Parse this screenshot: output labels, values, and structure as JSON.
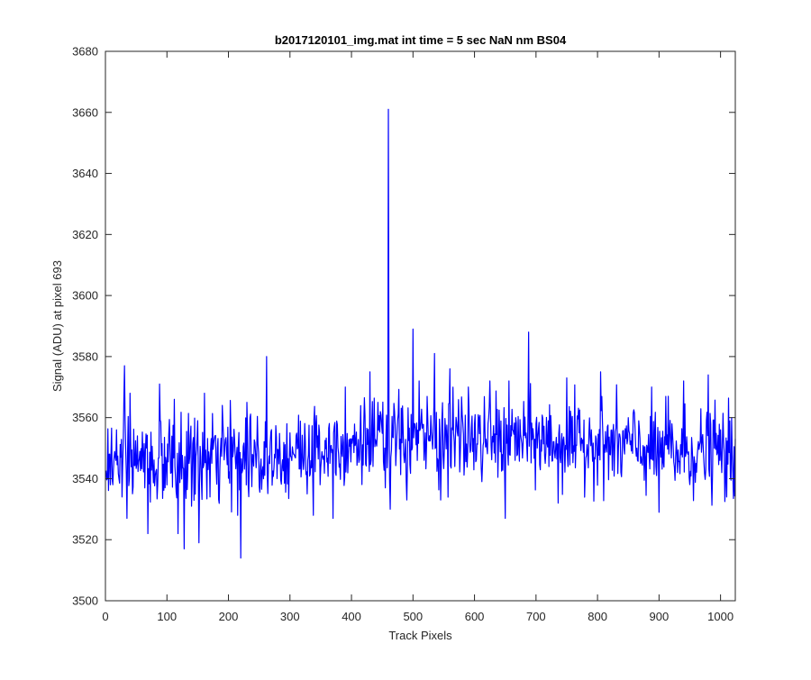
{
  "chart_data": {
    "type": "line",
    "title": "b2017120101_img.mat int time = 5 sec  NaN nm BS04",
    "xlabel": "Track Pixels",
    "ylabel": "Signal (ADU) at pixel 693",
    "xlim": [
      0,
      1024
    ],
    "ylim": [
      3500,
      3680
    ],
    "xticks": [
      0,
      100,
      200,
      300,
      400,
      500,
      600,
      700,
      800,
      900,
      1000
    ],
    "yticks": [
      3500,
      3520,
      3540,
      3560,
      3580,
      3600,
      3620,
      3640,
      3660,
      3680
    ],
    "grid": false,
    "legend": "none",
    "series_color": "#0000ff",
    "series": [
      {
        "x_start": 1,
        "x_step": 1,
        "n_points": 1024,
        "baseline": [
          [
            0,
            3545
          ],
          [
            100,
            3545
          ],
          [
            200,
            3547
          ],
          [
            300,
            3548
          ],
          [
            400,
            3552
          ],
          [
            500,
            3553
          ],
          [
            600,
            3553
          ],
          [
            700,
            3553
          ],
          [
            800,
            3551
          ],
          [
            900,
            3549
          ],
          [
            1024,
            3548
          ]
        ],
        "noise_sd": 7,
        "extremes": [
          [
            6,
            3548
          ],
          [
            12,
            3538
          ],
          [
            18,
            3556
          ],
          [
            22,
            3540
          ],
          [
            27,
            3534
          ],
          [
            31,
            3577
          ],
          [
            35,
            3527
          ],
          [
            40,
            3568
          ],
          [
            52,
            3554
          ],
          [
            69,
            3522
          ],
          [
            88,
            3571
          ],
          [
            112,
            3566
          ],
          [
            118,
            3522
          ],
          [
            128,
            3517
          ],
          [
            150,
            3559
          ],
          [
            152,
            3519
          ],
          [
            161,
            3568
          ],
          [
            170,
            3534
          ],
          [
            190,
            3564
          ],
          [
            215,
            3528
          ],
          [
            220,
            3514
          ],
          [
            230,
            3565
          ],
          [
            235,
            3560
          ],
          [
            262,
            3580
          ],
          [
            275,
            3548
          ],
          [
            300,
            3555
          ],
          [
            322,
            3543
          ],
          [
            338,
            3528
          ],
          [
            345,
            3554
          ],
          [
            370,
            3527
          ],
          [
            390,
            3570
          ],
          [
            400,
            3553
          ],
          [
            430,
            3575
          ],
          [
            440,
            3552
          ],
          [
            455,
            3537
          ],
          [
            460,
            3661
          ],
          [
            463,
            3530
          ],
          [
            470,
            3562
          ],
          [
            490,
            3533
          ],
          [
            500,
            3589
          ],
          [
            510,
            3572
          ],
          [
            520,
            3555
          ],
          [
            535,
            3581
          ],
          [
            545,
            3533
          ],
          [
            560,
            3576
          ],
          [
            575,
            3557
          ],
          [
            590,
            3570
          ],
          [
            600,
            3558
          ],
          [
            610,
            3552
          ],
          [
            625,
            3572
          ],
          [
            650,
            3527
          ],
          [
            660,
            3554
          ],
          [
            688,
            3588
          ],
          [
            700,
            3558
          ],
          [
            715,
            3545
          ],
          [
            736,
            3532
          ],
          [
            750,
            3573
          ],
          [
            765,
            3551
          ],
          [
            790,
            3556
          ],
          [
            805,
            3575
          ],
          [
            820,
            3548
          ],
          [
            850,
            3560
          ],
          [
            870,
            3545
          ],
          [
            900,
            3529
          ],
          [
            915,
            3567
          ],
          [
            930,
            3542
          ],
          [
            940,
            3572
          ],
          [
            960,
            3545
          ],
          [
            980,
            3574
          ],
          [
            990,
            3550
          ],
          [
            1000,
            3556
          ],
          [
            1010,
            3534
          ],
          [
            1018,
            3560
          ],
          [
            1024,
            3553
          ]
        ]
      }
    ]
  }
}
